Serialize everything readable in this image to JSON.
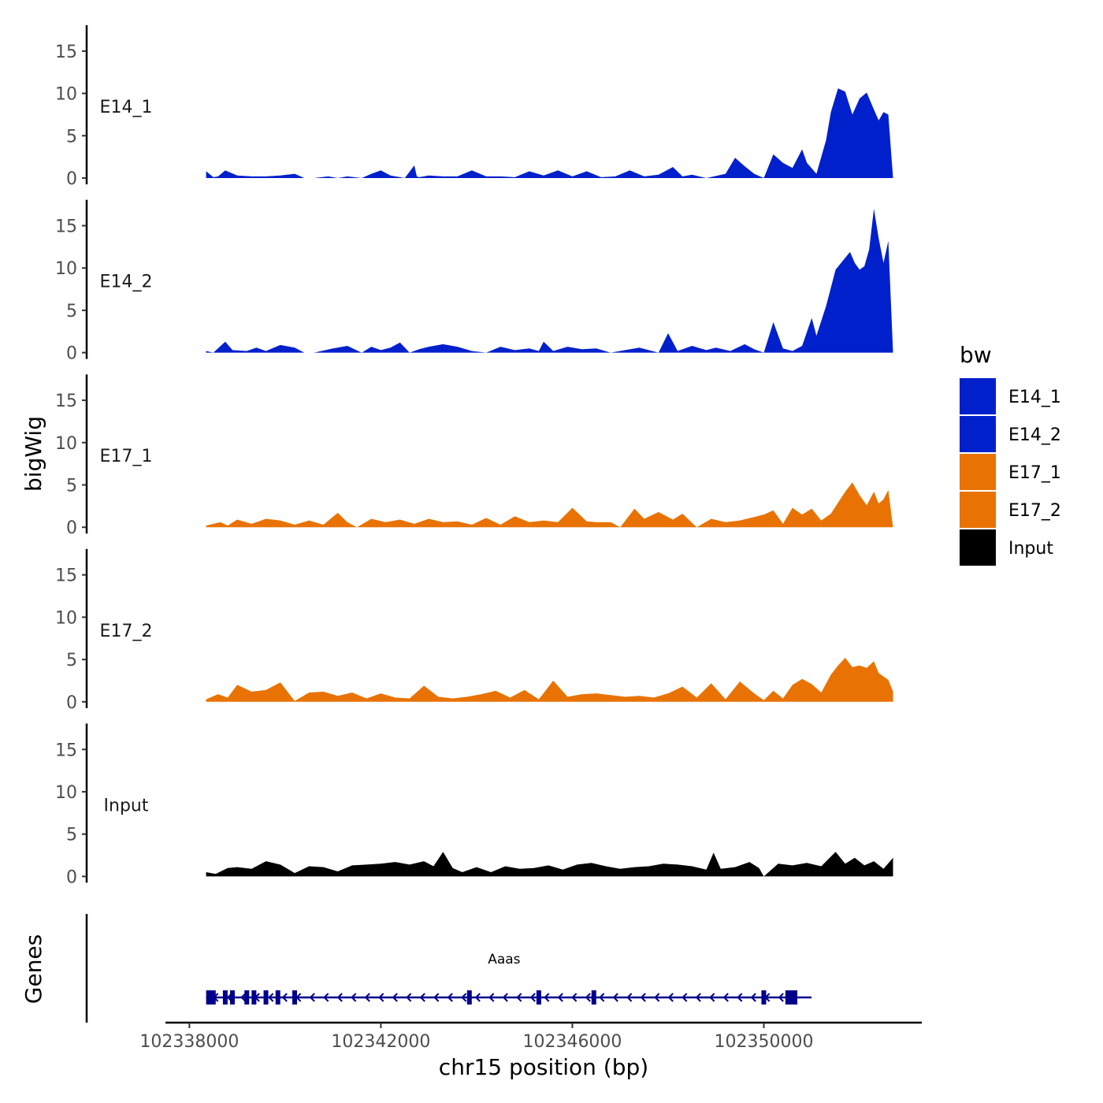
{
  "chart_data": {
    "type": "area",
    "xlabel": "chr15 position (bp)",
    "ylabel": "bigWig",
    "genes_label": "Genes",
    "xlim": [
      102337500,
      102353300
    ],
    "x_ticks": [
      102338000,
      102342000,
      102346000,
      102350000
    ],
    "x_tick_labels": [
      "102338000",
      "102342000",
      "102346000",
      "102350000"
    ],
    "ylim": [
      0,
      17.5
    ],
    "y_ticks": [
      0,
      5,
      10,
      15
    ],
    "y_tick_labels": [
      "0",
      "5",
      "10",
      "15"
    ],
    "legend": {
      "title": "bw",
      "entries": [
        {
          "label": "E14_1",
          "color": "#0020CC"
        },
        {
          "label": "E14_2",
          "color": "#0020CC"
        },
        {
          "label": "E17_1",
          "color": "#E87304"
        },
        {
          "label": "E17_2",
          "color": "#E87304"
        },
        {
          "label": "Input",
          "color": "#000000"
        }
      ]
    },
    "series": [
      {
        "name": "E14_1",
        "color": "#0020CC",
        "x": [
          102338350,
          102338500,
          102338600,
          102338750,
          102339000,
          102339300,
          102339600,
          102339900,
          102340200,
          102340400,
          102340600,
          102340900,
          102341100,
          102341300,
          102341600,
          102341800,
          102342000,
          102342200,
          102342500,
          102342700,
          102342750,
          102342800,
          102343000,
          102343300,
          102343600,
          102343900,
          102344200,
          102344500,
          102344800,
          102345100,
          102345400,
          102345700,
          102346000,
          102346300,
          102346600,
          102346900,
          102347200,
          102347500,
          102347800,
          102348100,
          102348300,
          102348500,
          102348800,
          102349200,
          102349400,
          102349600,
          102349800,
          102350000,
          102350200,
          102350400,
          102350600,
          102350800,
          102350900,
          102351100,
          102351300,
          102351400,
          102351550,
          102351700,
          102351850,
          102352000,
          102352150,
          102352300,
          102352400,
          102352500,
          102352600,
          102352700,
          102352750
        ],
        "values": [
          0.8,
          0.1,
          0.2,
          0.9,
          0.3,
          0.2,
          0.2,
          0.3,
          0.5,
          0.0,
          0.0,
          0.2,
          0.0,
          0.2,
          0.0,
          0.5,
          0.9,
          0.3,
          0.0,
          1.5,
          0.2,
          0.1,
          0.3,
          0.2,
          0.2,
          0.9,
          0.2,
          0.2,
          0.1,
          0.8,
          0.3,
          0.9,
          0.2,
          0.8,
          0.1,
          0.2,
          0.9,
          0.2,
          0.4,
          1.3,
          0.2,
          0.4,
          0.0,
          0.5,
          2.4,
          1.4,
          0.5,
          0.0,
          2.8,
          1.8,
          1.2,
          3.4,
          1.8,
          0.5,
          4.5,
          7.8,
          10.6,
          10.2,
          7.5,
          9.4,
          10.1,
          8.1,
          6.8,
          7.8,
          7.5,
          0.0,
          0.0
        ]
      },
      {
        "name": "E14_2",
        "color": "#0020CC",
        "x": [
          102338350,
          102338500,
          102338750,
          102338900,
          102339200,
          102339400,
          102339600,
          102339900,
          102340200,
          102340400,
          102340600,
          102341000,
          102341300,
          102341600,
          102341800,
          102342000,
          102342200,
          102342400,
          102342600,
          102342800,
          102343000,
          102343300,
          102343600,
          102343900,
          102344200,
          102344500,
          102344800,
          102345100,
          102345300,
          102345400,
          102345600,
          102345900,
          102346200,
          102346500,
          102346800,
          102347100,
          102347400,
          102347800,
          102348000,
          102348200,
          102348500,
          102348800,
          102349000,
          102349300,
          102349600,
          102349800,
          102350000,
          102350200,
          102350400,
          102350600,
          102350800,
          102351000,
          102351100,
          102351300,
          102351500,
          102351600,
          102351800,
          102351900,
          102352000,
          102352100,
          102352200,
          102352300,
          102352400,
          102352500,
          102352600,
          102352700,
          102352750
        ],
        "values": [
          0.2,
          0.0,
          1.3,
          0.3,
          0.2,
          0.6,
          0.2,
          0.9,
          0.6,
          0.0,
          0.0,
          0.5,
          0.8,
          0.0,
          0.7,
          0.3,
          0.6,
          1.2,
          0.0,
          0.4,
          0.7,
          1.0,
          0.7,
          0.2,
          0.0,
          0.7,
          0.3,
          0.5,
          0.2,
          1.3,
          0.2,
          0.7,
          0.4,
          0.5,
          0.0,
          0.3,
          0.6,
          0.0,
          2.3,
          0.2,
          0.8,
          0.3,
          0.6,
          0.2,
          1.0,
          0.4,
          0.0,
          3.6,
          0.5,
          0.2,
          0.8,
          4.1,
          2.0,
          5.5,
          9.8,
          10.5,
          11.9,
          10.6,
          9.8,
          10.2,
          12.2,
          17.0,
          13.5,
          10.6,
          13.2,
          0.0,
          0.0
        ]
      },
      {
        "name": "E17_1",
        "color": "#E87304",
        "x": [
          102338350,
          102338650,
          102338800,
          102339000,
          102339300,
          102339600,
          102339900,
          102340200,
          102340500,
          102340800,
          102341100,
          102341300,
          102341500,
          102341800,
          102342100,
          102342400,
          102342700,
          102343000,
          102343300,
          102343600,
          102343900,
          102344200,
          102344500,
          102344800,
          102345100,
          102345400,
          102345700,
          102346000,
          102346300,
          102346500,
          102346800,
          102347000,
          102347300,
          102347500,
          102347800,
          102348100,
          102348300,
          102348600,
          102348900,
          102349200,
          102349500,
          102349800,
          102350000,
          102350200,
          102350400,
          102350600,
          102350800,
          102351000,
          102351200,
          102351400,
          102351550,
          102351700,
          102351850,
          102352000,
          102352150,
          102352300,
          102352400,
          102352500,
          102352600,
          102352700
        ],
        "values": [
          0.2,
          0.6,
          0.2,
          0.9,
          0.4,
          1.0,
          0.8,
          0.3,
          0.8,
          0.3,
          1.7,
          0.6,
          0.0,
          1.0,
          0.6,
          0.9,
          0.4,
          1.0,
          0.6,
          0.7,
          0.3,
          1.1,
          0.3,
          1.3,
          0.6,
          0.8,
          0.6,
          2.3,
          0.7,
          0.6,
          0.6,
          0.0,
          2.2,
          1.0,
          1.8,
          0.9,
          1.6,
          0.0,
          1.0,
          0.6,
          0.8,
          1.2,
          1.5,
          2.0,
          0.4,
          2.3,
          1.5,
          2.2,
          0.8,
          1.6,
          2.9,
          4.2,
          5.3,
          3.8,
          2.6,
          4.2,
          2.8,
          3.3,
          4.4,
          0.0
        ]
      },
      {
        "name": "E17_2",
        "color": "#E87304",
        "x": [
          102338350,
          102338600,
          102338800,
          102339000,
          102339300,
          102339600,
          102339900,
          102340200,
          102340500,
          102340800,
          102341100,
          102341400,
          102341700,
          102342000,
          102342300,
          102342600,
          102342900,
          102343200,
          102343500,
          102343800,
          102344100,
          102344400,
          102344700,
          102345000,
          102345300,
          102345600,
          102345900,
          102346200,
          102346500,
          102346800,
          102347100,
          102347400,
          102347700,
          102348000,
          102348300,
          102348600,
          102348900,
          102349200,
          102349500,
          102349800,
          102350000,
          102350200,
          102350400,
          102350600,
          102350800,
          102351000,
          102351200,
          102351400,
          102351550,
          102351700,
          102351850,
          102352000,
          102352150,
          102352300,
          102352400,
          102352500,
          102352600,
          102352700
        ],
        "values": [
          0.3,
          0.9,
          0.5,
          2.0,
          1.2,
          1.4,
          2.3,
          0.1,
          1.1,
          1.2,
          0.7,
          1.1,
          0.4,
          1.0,
          0.5,
          0.4,
          1.9,
          0.6,
          0.4,
          0.6,
          0.9,
          1.3,
          0.5,
          1.4,
          0.3,
          2.5,
          0.6,
          0.9,
          1.0,
          0.8,
          0.6,
          0.7,
          0.5,
          1.0,
          1.8,
          0.5,
          2.2,
          0.3,
          2.4,
          1.0,
          0.2,
          1.3,
          0.4,
          2.0,
          2.7,
          2.1,
          1.1,
          3.2,
          4.3,
          5.2,
          4.1,
          4.3,
          4.0,
          4.8,
          3.4,
          3.0,
          2.6,
          1.2
        ]
      },
      {
        "name": "Input",
        "color": "#000000",
        "x": [
          102338350,
          102338550,
          102338800,
          102339000,
          102339300,
          102339600,
          102339900,
          102340200,
          102340500,
          102340800,
          102341100,
          102341400,
          102341700,
          102342000,
          102342300,
          102342600,
          102342900,
          102343100,
          102343300,
          102343500,
          102343700,
          102344000,
          102344300,
          102344600,
          102344900,
          102345200,
          102345500,
          102345800,
          102346100,
          102346400,
          102346700,
          102347000,
          102347300,
          102347600,
          102347900,
          102348200,
          102348500,
          102348800,
          102348950,
          102349100,
          102349400,
          102349700,
          102349900,
          102350000,
          102350300,
          102350600,
          102350900,
          102351200,
          102351500,
          102351700,
          102351900,
          102352100,
          102352300,
          102352500,
          102352700
        ],
        "values": [
          0.5,
          0.3,
          1.0,
          1.1,
          0.9,
          1.8,
          1.4,
          0.4,
          1.2,
          1.1,
          0.6,
          1.3,
          1.4,
          1.5,
          1.7,
          1.4,
          1.8,
          1.2,
          2.9,
          1.0,
          0.5,
          1.1,
          0.5,
          1.2,
          0.9,
          1.0,
          1.3,
          0.8,
          1.4,
          1.6,
          1.2,
          0.9,
          1.1,
          1.2,
          1.5,
          1.4,
          1.2,
          0.8,
          2.8,
          0.9,
          1.1,
          1.7,
          1.0,
          0.0,
          1.5,
          1.3,
          1.6,
          1.2,
          2.9,
          1.5,
          2.2,
          1.3,
          1.8,
          0.9,
          2.2
        ]
      }
    ],
    "gene": {
      "name": "Aaas",
      "strand": "-",
      "start": 102338350,
      "end": 102350800,
      "exons": [
        [
          102338350,
          102338550
        ],
        [
          102338700,
          102338740
        ],
        [
          102338850,
          102338880
        ],
        [
          102339150,
          102339190
        ],
        [
          102339300,
          102339340
        ],
        [
          102339550,
          102339600
        ],
        [
          102339800,
          102339880
        ],
        [
          102340150,
          102340230
        ],
        [
          102343800,
          102343870
        ],
        [
          102345250,
          102345310
        ],
        [
          102346400,
          102346450
        ],
        [
          102349950,
          102350020
        ],
        [
          102350450,
          102350700
        ]
      ]
    }
  }
}
